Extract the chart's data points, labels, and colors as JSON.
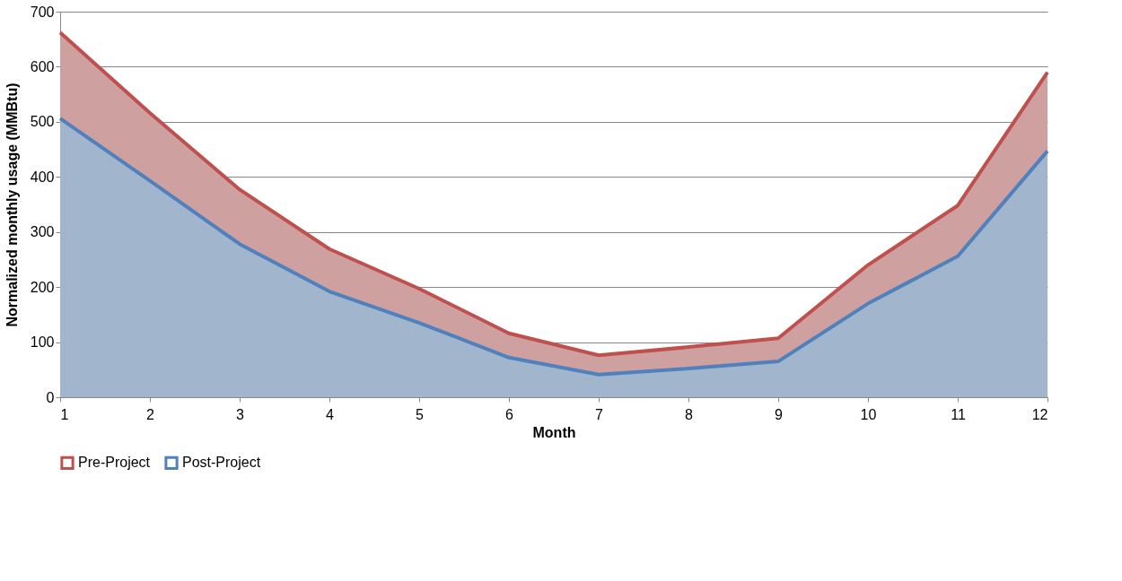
{
  "chart_data": {
    "type": "area",
    "xlabel": "Month",
    "ylabel": "Normalized monthly usage (MMBtu)",
    "x": [
      1,
      2,
      3,
      4,
      5,
      6,
      7,
      8,
      9,
      10,
      11,
      12
    ],
    "series": [
      {
        "name": "Pre-Project",
        "color": "#c0504d",
        "values": [
          662,
          516,
          377,
          269,
          197,
          116,
          76,
          91,
          107,
          240,
          348,
          590
        ]
      },
      {
        "name": "Post-Project",
        "color": "#4f81bd",
        "values": [
          506,
          393,
          278,
          192,
          135,
          72,
          41,
          52,
          65,
          170,
          256,
          447
        ]
      }
    ],
    "xlim": [
      1,
      12
    ],
    "xticks": [
      1,
      2,
      3,
      4,
      5,
      6,
      7,
      8,
      9,
      10,
      11,
      12
    ],
    "ylim": [
      0,
      700
    ],
    "yticks": [
      0,
      100,
      200,
      300,
      400,
      500,
      600,
      700
    ],
    "grid": "y",
    "legend": "bottom"
  }
}
